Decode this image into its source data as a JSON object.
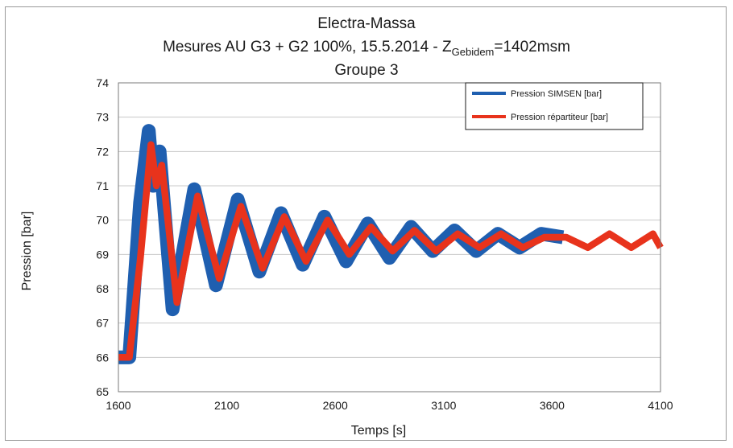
{
  "chart_data": {
    "type": "line",
    "title": "Electra-Massa",
    "subtitle_pre": "Mesures AU G3 + G2 100%, 15.5.2014 - Z",
    "subtitle_sub": "Gebidem",
    "subtitle_post": "=1402msm",
    "subtitle2": "Groupe 3",
    "xlabel": "Temps [s]",
    "ylabel": "Pression [bar]",
    "xlim": [
      1600,
      4100
    ],
    "ylim": [
      65,
      74
    ],
    "xticks": [
      "1600",
      "2100",
      "2600",
      "3100",
      "3600",
      "4100"
    ],
    "yticks": [
      "65",
      "66",
      "67",
      "68",
      "69",
      "70",
      "71",
      "72",
      "73",
      "74"
    ],
    "grid": true,
    "legend_position": "top-right",
    "series": [
      {
        "name": "Pression SIMSEN [bar]",
        "color": "#1f5fb0",
        "band_halfwidth": 0.2,
        "x": [
          1600,
          1650,
          1700,
          1740,
          1760,
          1790,
          1850,
          1950,
          2050,
          2150,
          2250,
          2350,
          2450,
          2550,
          2650,
          2750,
          2850,
          2950,
          3050,
          3150,
          3250,
          3350,
          3450,
          3550,
          3650
        ],
        "y": [
          66.0,
          66.0,
          70.5,
          72.6,
          71.0,
          72.0,
          67.4,
          70.9,
          68.1,
          70.6,
          68.5,
          70.2,
          68.7,
          70.1,
          68.8,
          69.9,
          68.9,
          69.8,
          69.1,
          69.7,
          69.1,
          69.6,
          69.2,
          69.6,
          69.5
        ]
      },
      {
        "name": "Pression répartiteur [bar]",
        "color": "#e8331c",
        "band_halfwidth": 0.1,
        "x": [
          1600,
          1650,
          1700,
          1750,
          1775,
          1800,
          1870,
          1965,
          2065,
          2165,
          2265,
          2365,
          2465,
          2565,
          2665,
          2765,
          2865,
          2965,
          3065,
          3165,
          3265,
          3365,
          3465,
          3565,
          3665,
          3765,
          3865,
          3965,
          4065,
          4100
        ],
        "y": [
          66.0,
          66.0,
          68.8,
          72.2,
          71.0,
          71.6,
          67.6,
          70.7,
          68.3,
          70.4,
          68.6,
          70.1,
          68.8,
          70.0,
          69.0,
          69.8,
          69.1,
          69.7,
          69.1,
          69.6,
          69.2,
          69.6,
          69.2,
          69.5,
          69.5,
          69.2,
          69.6,
          69.2,
          69.6,
          69.2
        ]
      }
    ]
  }
}
